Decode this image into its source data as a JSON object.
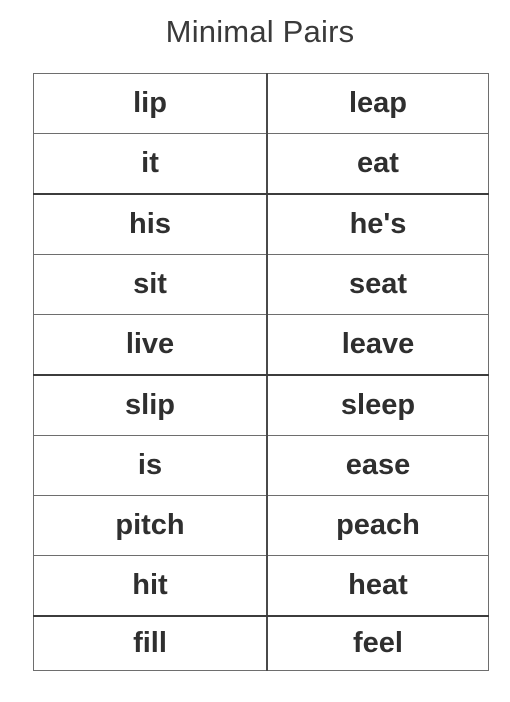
{
  "title": "Minimal Pairs",
  "pairs": [
    {
      "short": "lip",
      "long": "leap"
    },
    {
      "short": "it",
      "long": "eat"
    },
    {
      "short": "his",
      "long": "he's"
    },
    {
      "short": "sit",
      "long": "seat"
    },
    {
      "short": "live",
      "long": "leave"
    },
    {
      "short": "slip",
      "long": "sleep"
    },
    {
      "short": "is",
      "long": "ease"
    },
    {
      "short": "pitch",
      "long": "peach"
    },
    {
      "short": "hit",
      "long": "heat"
    },
    {
      "short": "fill",
      "long": "feel"
    }
  ]
}
